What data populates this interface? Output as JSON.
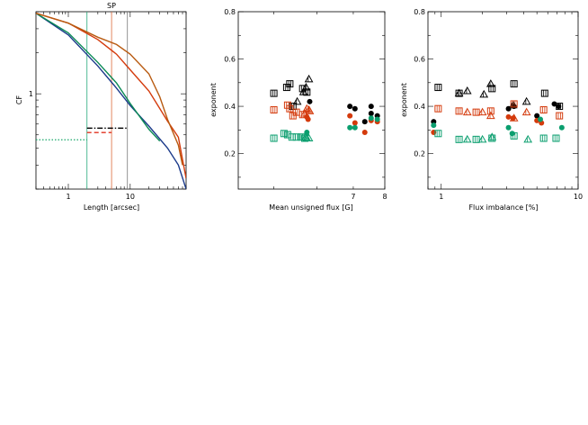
{
  "chart_data": [
    {
      "type": "line",
      "title": "SP",
      "xlabel": "Length [arcsec]",
      "ylabel": "CF",
      "x_scale": "log",
      "y_scale": "log",
      "xlim": [
        0.3,
        80
      ],
      "ylim": [
        0.2,
        4
      ],
      "x_ticks": [
        {
          "v": 1,
          "label": "1"
        },
        {
          "v": 10,
          "label": "10"
        }
      ],
      "y_ticks": [
        {
          "v": 1,
          "label": "1"
        }
      ],
      "series": [
        {
          "color": "#1b3a8a",
          "x": [
            0.3,
            1,
            3,
            6,
            10,
            20,
            40,
            60,
            80
          ],
          "y": [
            3.9,
            2.7,
            1.6,
            1.1,
            0.82,
            0.58,
            0.4,
            0.3,
            0.2
          ]
        },
        {
          "color": "#0a8a55",
          "x": [
            0.3,
            1,
            3,
            6,
            10,
            20,
            30
          ],
          "y": [
            3.9,
            2.8,
            1.7,
            1.2,
            0.85,
            0.55,
            0.45
          ]
        },
        {
          "color": "#d43a0c",
          "x": [
            0.3,
            1,
            3,
            6,
            10,
            20,
            30,
            40,
            60,
            70,
            80
          ],
          "y": [
            3.9,
            3.3,
            2.5,
            1.95,
            1.5,
            1.05,
            0.78,
            0.63,
            0.48,
            0.33,
            0.24
          ]
        },
        {
          "color": "#b85a10",
          "x": [
            0.3,
            1,
            3,
            6,
            10,
            20,
            30,
            40,
            60,
            70
          ],
          "y": [
            3.9,
            3.3,
            2.6,
            2.3,
            1.95,
            1.4,
            0.95,
            0.65,
            0.42,
            0.3
          ]
        }
      ],
      "vlines": [
        {
          "x": 2,
          "color": "#3fb58a"
        },
        {
          "x": 5,
          "color": "#e07a50"
        },
        {
          "x": 9,
          "color": "#888888"
        }
      ],
      "hsegments": [
        {
          "x1": 0.3,
          "x2": 2,
          "y": 0.46,
          "color": "#19a86b",
          "style": "dotted"
        },
        {
          "x1": 2,
          "x2": 5,
          "y": 0.52,
          "color": "#e0301e",
          "style": "dashed"
        },
        {
          "x1": 2,
          "x2": 9,
          "y": 0.56,
          "color": "#000000",
          "style": "dashdot"
        }
      ]
    },
    {
      "type": "scatter",
      "xlabel": "Mean unsigned flux [G]",
      "ylabel": "exponent",
      "x_scale": "log",
      "xlim": [
        4.3,
        8.0
      ],
      "ylim": [
        0.05,
        0.8
      ],
      "x_ticks": [
        {
          "v": 7,
          "label": "7"
        },
        {
          "v": 8,
          "label": "8"
        }
      ],
      "y_ticks": [
        {
          "v": 0.2,
          "label": "0.2"
        },
        {
          "v": 0.4,
          "label": "0.4"
        },
        {
          "v": 0.6,
          "label": "0.6"
        },
        {
          "v": 0.8,
          "label": "0.8"
        }
      ],
      "series": [
        {
          "marker": "square",
          "color": "#000000",
          "x": [
            5.0,
            5.28,
            5.35,
            5.42,
            5.65,
            5.75
          ],
          "y": [
            0.455,
            0.48,
            0.495,
            0.4,
            0.475,
            0.46
          ]
        },
        {
          "marker": "triangle",
          "color": "#000000",
          "x": [
            5.52,
            5.67,
            5.73,
            5.8
          ],
          "y": [
            0.42,
            0.46,
            0.48,
            0.515
          ]
        },
        {
          "marker": "circle",
          "color": "#000000",
          "x": [
            5.82,
            6.9,
            7.05,
            7.35,
            7.55,
            7.55,
            7.75
          ],
          "y": [
            0.42,
            0.4,
            0.39,
            0.335,
            0.4,
            0.37,
            0.36
          ]
        },
        {
          "marker": "square",
          "color": "#d43a0c",
          "x": [
            5.0,
            5.3,
            5.35,
            5.42,
            5.5,
            5.65
          ],
          "y": [
            0.385,
            0.405,
            0.39,
            0.36,
            0.375,
            0.365
          ]
        },
        {
          "marker": "triangle",
          "color": "#d43a0c",
          "x": [
            5.7,
            5.75,
            5.8,
            5.82
          ],
          "y": [
            0.37,
            0.39,
            0.385,
            0.38
          ]
        },
        {
          "marker": "circle",
          "color": "#d43a0c",
          "x": [
            5.75,
            5.78,
            6.9,
            7.05,
            7.35,
            7.55,
            7.75
          ],
          "y": [
            0.355,
            0.345,
            0.36,
            0.33,
            0.29,
            0.34,
            0.335
          ]
        },
        {
          "marker": "square",
          "color": "#0a9e6e",
          "x": [
            5.0,
            5.22,
            5.3,
            5.4,
            5.5,
            5.62,
            5.7
          ],
          "y": [
            0.265,
            0.285,
            0.28,
            0.27,
            0.27,
            0.27,
            0.265
          ]
        },
        {
          "marker": "triangle",
          "color": "#0a9e6e",
          "x": [
            5.72,
            5.75,
            5.8
          ],
          "y": [
            0.27,
            0.265,
            0.265
          ]
        },
        {
          "marker": "circle",
          "color": "#0a9e6e",
          "x": [
            5.75,
            6.9,
            7.05,
            7.55,
            7.75
          ],
          "y": [
            0.29,
            0.31,
            0.31,
            0.35,
            0.345
          ]
        }
      ]
    },
    {
      "type": "scatter",
      "xlabel": "Flux imbalance [%]",
      "ylabel": "exponent",
      "x_scale": "log",
      "xlim": [
        0.8,
        10
      ],
      "ylim": [
        0.05,
        0.8
      ],
      "x_ticks": [
        {
          "v": 1,
          "label": "1"
        },
        {
          "v": 10,
          "label": "10"
        }
      ],
      "y_ticks": [
        {
          "v": 0.2,
          "label": "0.2"
        },
        {
          "v": 0.4,
          "label": "0.4"
        },
        {
          "v": 0.6,
          "label": "0.6"
        },
        {
          "v": 0.8,
          "label": "0.8"
        }
      ],
      "series": [
        {
          "marker": "square",
          "color": "#000000",
          "x": [
            0.95,
            1.35,
            2.35,
            3.4,
            5.7,
            7.3
          ],
          "y": [
            0.48,
            0.455,
            0.475,
            0.495,
            0.455,
            0.4
          ]
        },
        {
          "marker": "triangle",
          "color": "#000000",
          "x": [
            1.35,
            1.55,
            2.05,
            2.3,
            3.35,
            4.2
          ],
          "y": [
            0.455,
            0.465,
            0.45,
            0.495,
            0.405,
            0.42
          ]
        },
        {
          "marker": "circle",
          "color": "#000000",
          "x": [
            0.88,
            3.1,
            3.4,
            5.0,
            6.7,
            7.2
          ],
          "y": [
            0.335,
            0.39,
            0.4,
            0.36,
            0.41,
            0.4
          ]
        },
        {
          "marker": "square",
          "color": "#d43a0c",
          "x": [
            0.95,
            1.35,
            1.8,
            2.3,
            3.4,
            5.6,
            7.3
          ],
          "y": [
            0.39,
            0.38,
            0.375,
            0.38,
            0.41,
            0.385,
            0.36
          ]
        },
        {
          "marker": "triangle",
          "color": "#d43a0c",
          "x": [
            1.55,
            2.0,
            2.3,
            3.4,
            4.2
          ],
          "y": [
            0.375,
            0.375,
            0.36,
            0.35,
            0.375
          ]
        },
        {
          "marker": "circle",
          "color": "#d43a0c",
          "x": [
            0.88,
            3.1,
            3.35,
            5.0,
            5.4
          ],
          "y": [
            0.29,
            0.355,
            0.35,
            0.34,
            0.33
          ]
        },
        {
          "marker": "square",
          "color": "#0a9e6e",
          "x": [
            0.95,
            1.35,
            1.8,
            2.35,
            3.4,
            5.6,
            6.9
          ],
          "y": [
            0.285,
            0.26,
            0.26,
            0.265,
            0.275,
            0.265,
            0.265
          ]
        },
        {
          "marker": "triangle",
          "color": "#0a9e6e",
          "x": [
            1.55,
            2.0,
            2.35,
            4.3
          ],
          "y": [
            0.26,
            0.26,
            0.27,
            0.26
          ]
        },
        {
          "marker": "circle",
          "color": "#0a9e6e",
          "x": [
            0.88,
            3.1,
            3.3,
            5.3,
            7.6
          ],
          "y": [
            0.32,
            0.31,
            0.285,
            0.345,
            0.31
          ]
        }
      ]
    }
  ]
}
